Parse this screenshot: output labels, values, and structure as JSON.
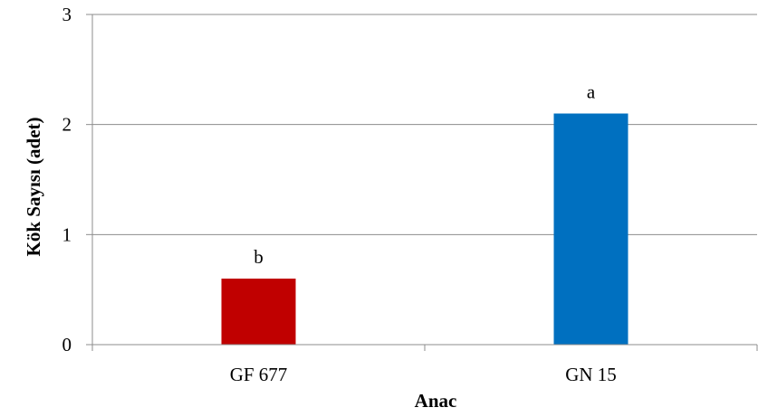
{
  "chart_data": {
    "type": "bar",
    "categories": [
      "GF 677",
      "GN 15"
    ],
    "values": [
      0.6,
      2.1
    ],
    "data_labels": [
      "b",
      "a"
    ],
    "colors": [
      "#c00000",
      "#0070c0"
    ],
    "title": "",
    "xlabel": "Anac",
    "ylabel": "Kök Sayısı (adet)",
    "ylim": [
      0,
      3
    ],
    "yticks": [
      0,
      1,
      2,
      3
    ],
    "grid": "horizontal",
    "legend": "none"
  }
}
